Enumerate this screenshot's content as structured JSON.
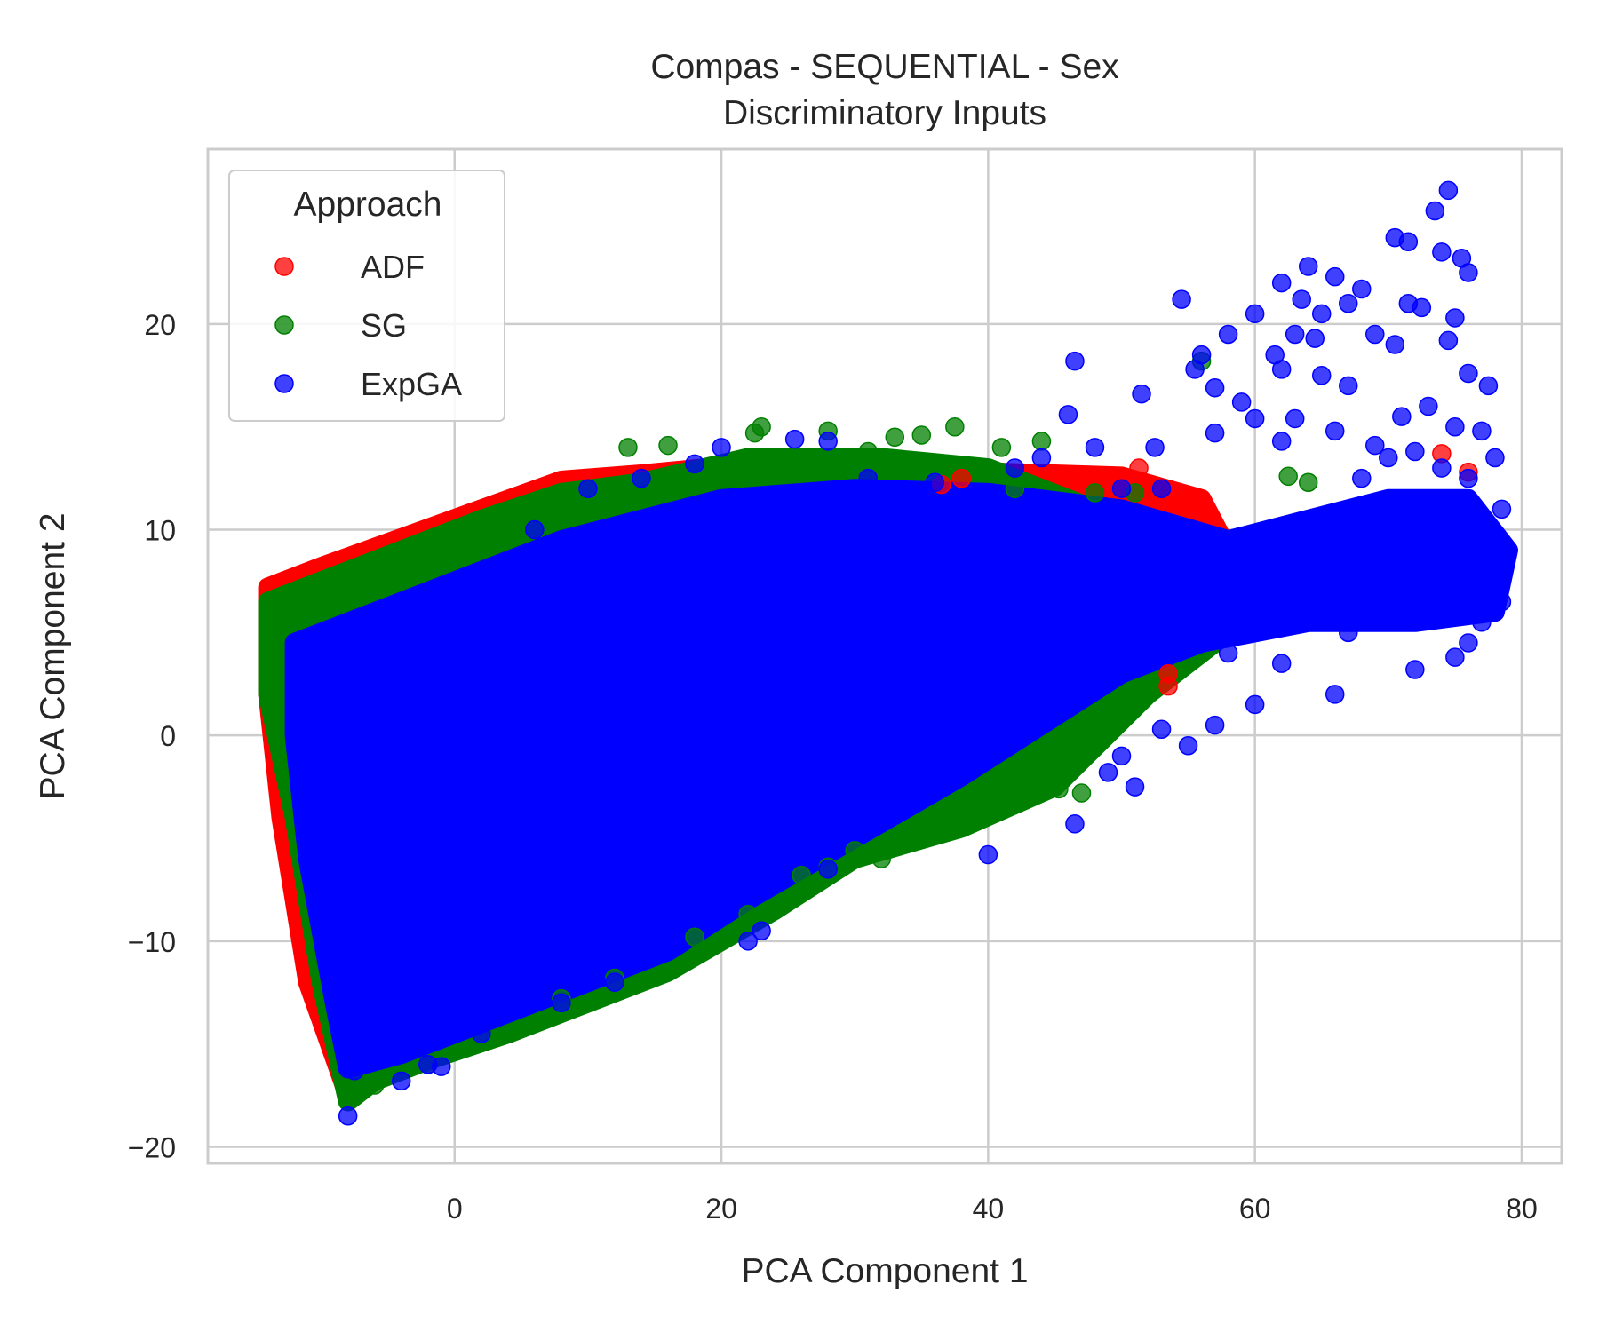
{
  "chart_data": {
    "type": "scatter",
    "title": "Compas - SEQUENTIAL - Sex",
    "subtitle": "Discriminatory Inputs",
    "xlabel": "PCA Component 1",
    "ylabel": "PCA Component 2",
    "xlim": [
      -18.5,
      83
    ],
    "ylim": [
      -20.8,
      28.5
    ],
    "xticks": [
      0,
      20,
      40,
      60,
      80
    ],
    "yticks": [
      -20,
      -10,
      0,
      10,
      20
    ],
    "grid": true,
    "legend": {
      "title": "Approach",
      "placement": "top-left"
    },
    "series": [
      {
        "name": "ADF",
        "color": "#ff0000",
        "cluster_polygon": [
          [
            -14,
            7.2
          ],
          [
            -10,
            8.2
          ],
          [
            -4,
            9.6
          ],
          [
            2,
            11.0
          ],
          [
            8,
            12.4
          ],
          [
            14,
            12.7
          ],
          [
            22,
            13.2
          ],
          [
            30,
            13.0
          ],
          [
            40,
            12.8
          ],
          [
            50,
            12.6
          ],
          [
            56,
            11.5
          ],
          [
            58,
            9.0
          ],
          [
            55,
            5.0
          ],
          [
            50,
            2.0
          ],
          [
            40,
            -1.5
          ],
          [
            30,
            -4.5
          ],
          [
            22,
            -8.0
          ],
          [
            12,
            -12.0
          ],
          [
            4,
            -14.5
          ],
          [
            -6,
            -16.0
          ],
          [
            -8,
            -17.5
          ],
          [
            -11,
            -12.0
          ],
          [
            -13,
            -4.0
          ],
          [
            -14,
            2.0
          ]
        ],
        "points": [
          [
            38,
            12.5
          ],
          [
            51.3,
            13.0
          ],
          [
            53.5,
            3.0
          ],
          [
            53.5,
            2.4
          ],
          [
            74,
            13.7
          ],
          [
            76,
            12.8
          ],
          [
            36.5,
            12.2
          ]
        ]
      },
      {
        "name": "SG",
        "color": "#008000",
        "cluster_polygon": [
          [
            -14,
            6.5
          ],
          [
            -10,
            7.5
          ],
          [
            -4,
            9.0
          ],
          [
            2,
            10.5
          ],
          [
            8,
            11.8
          ],
          [
            14,
            12.3
          ],
          [
            22,
            13.5
          ],
          [
            32,
            13.5
          ],
          [
            40,
            13.0
          ],
          [
            48,
            11.0
          ],
          [
            56,
            9.5
          ],
          [
            60,
            8.0
          ],
          [
            58,
            5.0
          ],
          [
            52,
            2.0
          ],
          [
            45,
            -2.5
          ],
          [
            38,
            -4.5
          ],
          [
            30,
            -6.0
          ],
          [
            24,
            -8.5
          ],
          [
            16,
            -11.5
          ],
          [
            10,
            -13.0
          ],
          [
            4,
            -14.5
          ],
          [
            -2,
            -15.8
          ],
          [
            -6,
            -16.8
          ],
          [
            -8,
            -17.8
          ],
          [
            -10,
            -12.0
          ],
          [
            -12,
            -4.0
          ],
          [
            -14,
            2.0
          ]
        ],
        "points": [
          [
            23,
            15.0
          ],
          [
            22.5,
            14.7
          ],
          [
            28,
            14.8
          ],
          [
            33,
            14.5
          ],
          [
            35,
            14.6
          ],
          [
            37.5,
            15.0
          ],
          [
            31,
            13.8
          ],
          [
            44,
            14.3
          ],
          [
            41,
            14.0
          ],
          [
            16,
            14.1
          ],
          [
            13,
            14.0
          ],
          [
            56,
            18.2
          ],
          [
            47,
            -2.8
          ],
          [
            45.3,
            -2.6
          ],
          [
            39.5,
            -3.1
          ],
          [
            35,
            -4.5
          ],
          [
            30,
            -5.6
          ],
          [
            26,
            -6.8
          ],
          [
            22,
            -8.7
          ],
          [
            18,
            -9.8
          ],
          [
            12,
            -11.8
          ],
          [
            8,
            -12.8
          ],
          [
            4,
            -14.5
          ],
          [
            -2,
            -16.0
          ],
          [
            -6,
            -17.0
          ],
          [
            -8,
            -17.5
          ],
          [
            48,
            11.8
          ],
          [
            51,
            11.8
          ],
          [
            62.5,
            12.6
          ],
          [
            64,
            12.3
          ],
          [
            41,
            12.8
          ],
          [
            42,
            12.0
          ],
          [
            32,
            -6.0
          ],
          [
            28,
            -6.4
          ]
        ]
      },
      {
        "name": "ExpGA",
        "color": "#0000ff",
        "cluster_polygon": [
          [
            -12,
            4.5
          ],
          [
            -8,
            5.5
          ],
          [
            -4,
            6.5
          ],
          [
            2,
            8.0
          ],
          [
            8,
            9.5
          ],
          [
            14,
            10.5
          ],
          [
            20,
            11.5
          ],
          [
            30,
            12.0
          ],
          [
            40,
            11.8
          ],
          [
            50,
            11.0
          ],
          [
            58,
            9.5
          ],
          [
            64,
            10.5
          ],
          [
            70,
            11.5
          ],
          [
            76,
            11.5
          ],
          [
            79,
            9.0
          ],
          [
            78,
            6.0
          ],
          [
            72,
            5.5
          ],
          [
            64,
            5.5
          ],
          [
            56,
            4.5
          ],
          [
            50,
            3.0
          ],
          [
            44,
            0.5
          ],
          [
            38,
            -2.0
          ],
          [
            30,
            -5.0
          ],
          [
            22,
            -8.0
          ],
          [
            16,
            -10.5
          ],
          [
            8,
            -12.5
          ],
          [
            2,
            -14.0
          ],
          [
            -4,
            -15.5
          ],
          [
            -8,
            -16.2
          ],
          [
            -9,
            -13.0
          ],
          [
            -11,
            -6.0
          ],
          [
            -12,
            0.0
          ]
        ],
        "points": [
          [
            74.5,
            26.5
          ],
          [
            73.5,
            25.5
          ],
          [
            70.5,
            24.2
          ],
          [
            71.5,
            24.0
          ],
          [
            74,
            23.5
          ],
          [
            75.5,
            23.2
          ],
          [
            64,
            22.8
          ],
          [
            66,
            22.3
          ],
          [
            76,
            22.5
          ],
          [
            62,
            22.0
          ],
          [
            63.5,
            21.2
          ],
          [
            65,
            20.5
          ],
          [
            67,
            21.0
          ],
          [
            68,
            21.7
          ],
          [
            71.5,
            21.0
          ],
          [
            72.5,
            20.8
          ],
          [
            54.5,
            21.2
          ],
          [
            75,
            20.3
          ],
          [
            60,
            20.5
          ],
          [
            63,
            19.5
          ],
          [
            64.5,
            19.3
          ],
          [
            69,
            19.5
          ],
          [
            58,
            19.5
          ],
          [
            70.5,
            19.0
          ],
          [
            74.5,
            19.2
          ],
          [
            46.5,
            18.2
          ],
          [
            56,
            18.5
          ],
          [
            61.5,
            18.5
          ],
          [
            62,
            17.8
          ],
          [
            65,
            17.5
          ],
          [
            67,
            17.0
          ],
          [
            76,
            17.6
          ],
          [
            77.5,
            17.0
          ],
          [
            55.5,
            17.8
          ],
          [
            57,
            16.9
          ],
          [
            59,
            16.2
          ],
          [
            60,
            15.4
          ],
          [
            63,
            15.4
          ],
          [
            66,
            14.8
          ],
          [
            69,
            14.1
          ],
          [
            71,
            15.5
          ],
          [
            73,
            16.0
          ],
          [
            75,
            15.0
          ],
          [
            77,
            14.8
          ],
          [
            78,
            13.5
          ],
          [
            51.5,
            16.6
          ],
          [
            46,
            15.6
          ],
          [
            52.5,
            14.0
          ],
          [
            48,
            14.0
          ],
          [
            44,
            13.5
          ],
          [
            42,
            13.0
          ],
          [
            36,
            12.3
          ],
          [
            50,
            12.0
          ],
          [
            53,
            12.0
          ],
          [
            57,
            14.7
          ],
          [
            62,
            14.3
          ],
          [
            68,
            12.5
          ],
          [
            70,
            13.5
          ],
          [
            72,
            13.8
          ],
          [
            74,
            13.0
          ],
          [
            76,
            12.5
          ],
          [
            78.5,
            11.0
          ],
          [
            79,
            9.0
          ],
          [
            78,
            8.0
          ],
          [
            76,
            7.0
          ],
          [
            78.5,
            6.5
          ],
          [
            77,
            5.5
          ],
          [
            76,
            4.5
          ],
          [
            75,
            3.8
          ],
          [
            72,
            3.2
          ],
          [
            66,
            2.0
          ],
          [
            62,
            3.5
          ],
          [
            58,
            4.0
          ],
          [
            60,
            1.5
          ],
          [
            57,
            0.5
          ],
          [
            55,
            -0.5
          ],
          [
            53,
            0.3
          ],
          [
            50,
            -1.0
          ],
          [
            49,
            -1.8
          ],
          [
            51,
            -2.5
          ],
          [
            40,
            -5.8
          ],
          [
            46.5,
            -4.3
          ],
          [
            28,
            -6.5
          ],
          [
            23,
            -9.5
          ],
          [
            22,
            -10.0
          ],
          [
            12,
            -12.0
          ],
          [
            8,
            -13.0
          ],
          [
            2,
            -14.5
          ],
          [
            -2,
            -16.0
          ],
          [
            -4,
            -16.8
          ],
          [
            -8,
            -18.5
          ],
          [
            -7.5,
            -16.3
          ],
          [
            -1,
            -16.1
          ],
          [
            -5,
            -15.5
          ],
          [
            31,
            12.5
          ],
          [
            28,
            14.3
          ],
          [
            25.5,
            14.4
          ],
          [
            20,
            14.0
          ],
          [
            18,
            13.2
          ],
          [
            14,
            12.5
          ],
          [
            10,
            12.0
          ],
          [
            6,
            10.0
          ],
          [
            0,
            7.5
          ],
          [
            -4,
            6.0
          ],
          [
            -6,
            5.5
          ],
          [
            -10,
            5.0
          ],
          [
            69,
            8.0
          ],
          [
            71,
            6.5
          ],
          [
            73,
            7.5
          ],
          [
            67,
            5.0
          ],
          [
            64,
            6.0
          ]
        ]
      }
    ]
  }
}
